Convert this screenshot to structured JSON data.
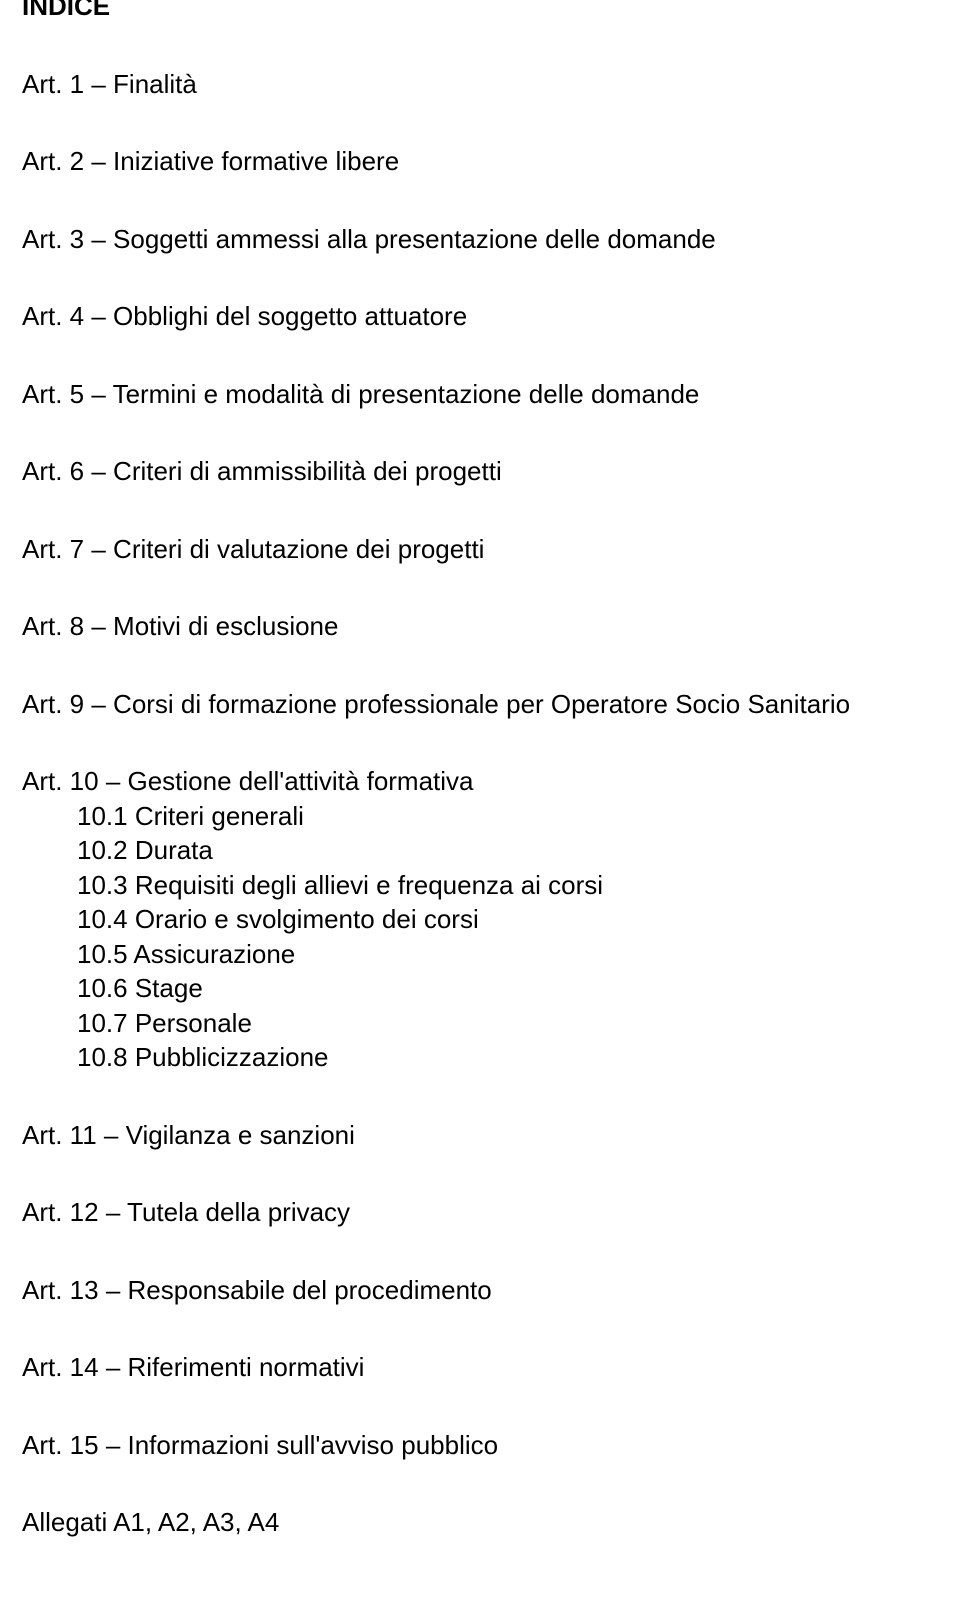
{
  "colors": {
    "background": "#ffffff",
    "text": "#000000"
  },
  "typography": {
    "font_family": "Arial, Helvetica, sans-serif",
    "body_fontsize": 26,
    "title_fontsize": 26,
    "title_weight": "bold"
  },
  "title": "INDICE",
  "items": [
    "Art. 1 – Finalità",
    "Art. 2 – Iniziative formative libere",
    "Art. 3 – Soggetti ammessi alla presentazione delle domande",
    "Art. 4 – Obblighi del soggetto attuatore",
    "Art. 5 – Termini e modalità di presentazione delle domande",
    "Art. 6 – Criteri di ammissibilità dei progetti",
    "Art. 7 – Criteri di valutazione dei progetti",
    "Art. 8 – Motivi di esclusione",
    "Art. 9 – Corsi di formazione professionale per Operatore Socio Sanitario"
  ],
  "item10": {
    "label": "Art. 10 – Gestione dell'attività formativa",
    "subitems": [
      "10.1 Criteri generali",
      "10.2 Durata",
      "10.3 Requisiti degli allievi e frequenza ai corsi",
      "10.4 Orario e svolgimento dei corsi",
      "10.5 Assicurazione",
      "10.6 Stage",
      "10.7 Personale",
      "10.8 Pubblicizzazione"
    ]
  },
  "items_after": [
    "Art. 11 – Vigilanza e sanzioni",
    "Art. 12 – Tutela della privacy",
    "Art. 13 – Responsabile del procedimento",
    "Art. 14 – Riferimenti normativi",
    "Art. 15 – Informazioni sull'avviso pubblico"
  ],
  "allegati": "Allegati A1, A2, A3, A4"
}
